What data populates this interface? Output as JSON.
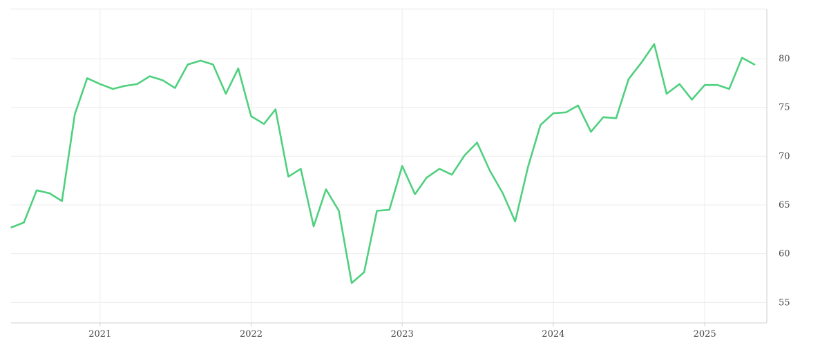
{
  "chart_data": {
    "type": "line",
    "title": "",
    "xlabel": "",
    "ylabel": "",
    "x_range": [
      "2020-05-31",
      "2025-05-31"
    ],
    "ylim": [
      52.9,
      85.1
    ],
    "y_ticks": [
      55,
      60,
      65,
      70,
      75,
      80
    ],
    "x_ticks": [
      {
        "date": "2021-01-01",
        "label": "2021"
      },
      {
        "date": "2022-01-01",
        "label": "2022"
      },
      {
        "date": "2023-01-01",
        "label": "2023"
      },
      {
        "date": "2024-01-01",
        "label": "2024"
      },
      {
        "date": "2025-01-01",
        "label": "2025"
      }
    ],
    "y_axis_position": "right",
    "grid": true,
    "legend": "none",
    "colors": {
      "line": "#4ed07e",
      "grid": "#ececec",
      "axis": "#cfcfcf",
      "text": "#444444"
    },
    "series": [
      {
        "points": [
          [
            "2020-06-01",
            62.7
          ],
          [
            "2020-07-01",
            63.2
          ],
          [
            "2020-08-01",
            66.5
          ],
          [
            "2020-09-01",
            66.2
          ],
          [
            "2020-10-01",
            65.4
          ],
          [
            "2020-11-01",
            74.3
          ],
          [
            "2020-12-01",
            78.0
          ],
          [
            "2021-01-01",
            77.4
          ],
          [
            "2021-02-01",
            76.9
          ],
          [
            "2021-03-01",
            77.2
          ],
          [
            "2021-04-01",
            77.4
          ],
          [
            "2021-05-01",
            78.2
          ],
          [
            "2021-06-01",
            77.8
          ],
          [
            "2021-07-01",
            77.0
          ],
          [
            "2021-08-01",
            79.4
          ],
          [
            "2021-09-01",
            79.8
          ],
          [
            "2021-10-01",
            79.4
          ],
          [
            "2021-11-01",
            76.4
          ],
          [
            "2021-12-01",
            79.0
          ],
          [
            "2022-01-01",
            74.1
          ],
          [
            "2022-02-01",
            73.3
          ],
          [
            "2022-03-01",
            74.8
          ],
          [
            "2022-04-01",
            67.9
          ],
          [
            "2022-05-01",
            68.7
          ],
          [
            "2022-06-01",
            62.8
          ],
          [
            "2022-07-01",
            66.6
          ],
          [
            "2022-08-01",
            64.4
          ],
          [
            "2022-09-01",
            57.0
          ],
          [
            "2022-10-01",
            58.1
          ],
          [
            "2022-11-01",
            64.4
          ],
          [
            "2022-12-01",
            64.5
          ],
          [
            "2023-01-01",
            69.0
          ],
          [
            "2023-02-01",
            66.1
          ],
          [
            "2023-03-01",
            67.8
          ],
          [
            "2023-04-01",
            68.7
          ],
          [
            "2023-05-01",
            68.1
          ],
          [
            "2023-06-01",
            70.1
          ],
          [
            "2023-07-01",
            71.4
          ],
          [
            "2023-08-01",
            68.5
          ],
          [
            "2023-09-01",
            66.2
          ],
          [
            "2023-10-01",
            63.3
          ],
          [
            "2023-11-01",
            68.9
          ],
          [
            "2023-12-01",
            73.2
          ],
          [
            "2024-01-01",
            74.4
          ],
          [
            "2024-02-01",
            74.5
          ],
          [
            "2024-03-01",
            75.2
          ],
          [
            "2024-04-01",
            72.5
          ],
          [
            "2024-05-01",
            74.0
          ],
          [
            "2024-06-01",
            73.9
          ],
          [
            "2024-07-01",
            77.9
          ],
          [
            "2024-08-01",
            79.6
          ],
          [
            "2024-09-01",
            81.5
          ],
          [
            "2024-10-01",
            76.4
          ],
          [
            "2024-11-01",
            77.4
          ],
          [
            "2024-12-01",
            75.8
          ],
          [
            "2025-01-01",
            77.3
          ],
          [
            "2025-02-01",
            77.3
          ],
          [
            "2025-03-01",
            76.9
          ],
          [
            "2025-04-01",
            80.1
          ],
          [
            "2025-05-01",
            79.4
          ]
        ]
      }
    ]
  }
}
